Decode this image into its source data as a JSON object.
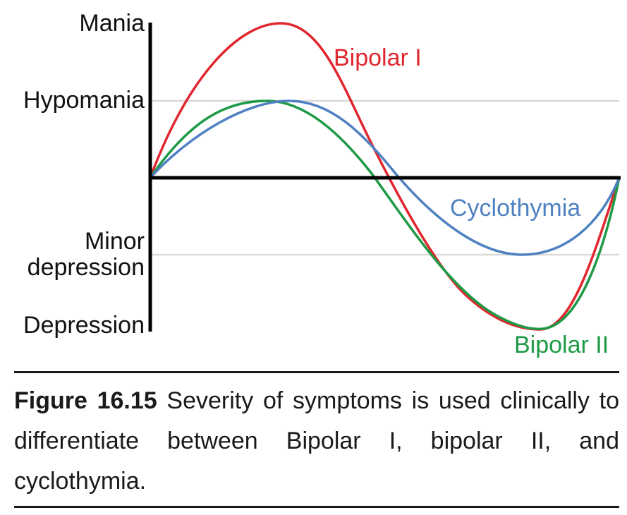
{
  "y_levels": {
    "mania": "Mania",
    "hypomania": "Hypomania",
    "minor_depression_line1": "Minor",
    "minor_depression_line2": "depression",
    "depression": "Depression"
  },
  "curves": [
    {
      "name": "Bipolar I",
      "color": "#e0262e",
      "peak_level": "Mania",
      "trough_level": "Depression"
    },
    {
      "name": "Bipolar II",
      "color": "#1e9a46",
      "peak_level": "Hypomania",
      "trough_level": "Depression"
    },
    {
      "name": "Cyclothymia",
      "color": "#4f81c2",
      "peak_level": "Hypomania",
      "trough_level": "Minor depression"
    }
  ],
  "caption": {
    "figure_number": "Figure 16.15",
    "text": " Severity of symptoms is used clinically to differentiate between Bipolar I, bipolar II, and cyclothymia."
  }
}
